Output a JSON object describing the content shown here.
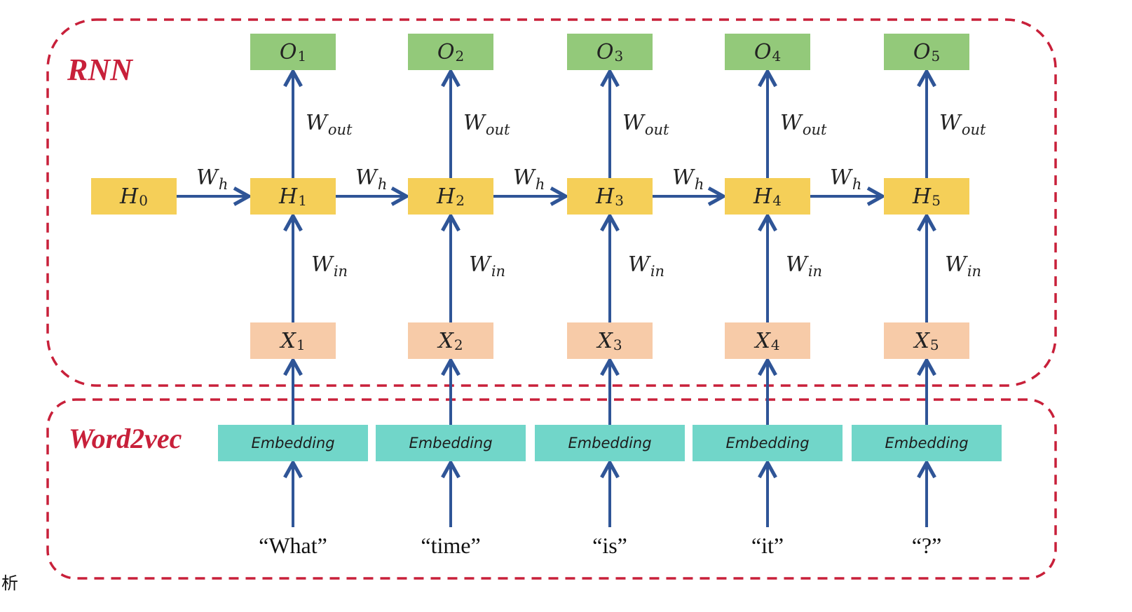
{
  "sections": {
    "rnn_title": "RNN",
    "word2vec_title": "Word2vec"
  },
  "weights": {
    "w": "W",
    "out_sub": "out",
    "h_sub": "h",
    "in_sub": "in"
  },
  "columns": [
    {
      "output": {
        "sym": "O",
        "idx": "1"
      },
      "hidden": {
        "sym": "H",
        "idx": "1"
      },
      "input": {
        "sym": "X",
        "idx": "1"
      },
      "embedding": "Embedding",
      "word": "“What”"
    },
    {
      "output": {
        "sym": "O",
        "idx": "2"
      },
      "hidden": {
        "sym": "H",
        "idx": "2"
      },
      "input": {
        "sym": "X",
        "idx": "2"
      },
      "embedding": "Embedding",
      "word": "“time”"
    },
    {
      "output": {
        "sym": "O",
        "idx": "3"
      },
      "hidden": {
        "sym": "H",
        "idx": "3"
      },
      "input": {
        "sym": "X",
        "idx": "3"
      },
      "embedding": "Embedding",
      "word": "“is”"
    },
    {
      "output": {
        "sym": "O",
        "idx": "4"
      },
      "hidden": {
        "sym": "H",
        "idx": "4"
      },
      "input": {
        "sym": "X",
        "idx": "4"
      },
      "embedding": "Embedding",
      "word": "“it”"
    },
    {
      "output": {
        "sym": "O",
        "idx": "5"
      },
      "hidden": {
        "sym": "H",
        "idx": "5"
      },
      "input": {
        "sym": "X",
        "idx": "5"
      },
      "embedding": "Embedding",
      "word": "“?”"
    }
  ],
  "initial_hidden": {
    "sym": "H",
    "idx": "0"
  },
  "corner_glyph": "析",
  "colors": {
    "border": "#c8203a",
    "arrow": "#2f5597",
    "output_box": "#93c97a",
    "hidden_box": "#f5cf58",
    "input_box": "#f7cba8",
    "embedding_box": "#71d6c9"
  }
}
